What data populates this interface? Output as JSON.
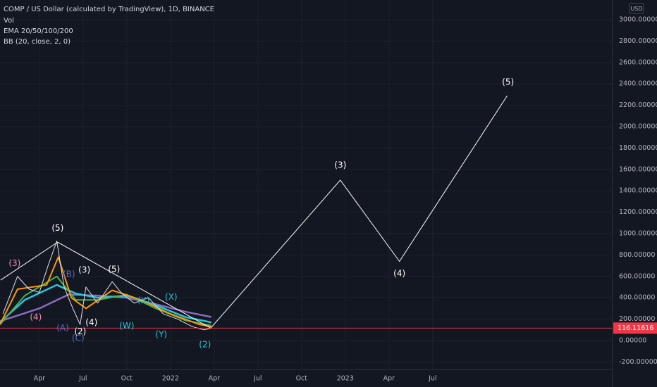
{
  "chart_data": {
    "type": "line",
    "header": [
      "COMP / US Dollar (calculated by TradingView), 1D, BINANCE",
      "Vol",
      "EMA 20/50/100/200",
      "BB (20, close, 2, 0)"
    ],
    "y_axis_label": "USD",
    "ylim": [
      -270,
      3000
    ],
    "xlim": [
      0.3,
      42.3
    ],
    "grid": true,
    "yticks": [
      {
        "value": 3000,
        "label": "3000.00000"
      },
      {
        "value": 2800,
        "label": "2800.00000"
      },
      {
        "value": 2600,
        "label": "2600.00000"
      },
      {
        "value": 2400,
        "label": "2400.00000"
      },
      {
        "value": 2200,
        "label": "2200.00000"
      },
      {
        "value": 2000,
        "label": "2000.00000"
      },
      {
        "value": 1800,
        "label": "1800.00000"
      },
      {
        "value": 1600,
        "label": "1600.00000"
      },
      {
        "value": 1400,
        "label": "1400.00000"
      },
      {
        "value": 1200,
        "label": "1200.00000"
      },
      {
        "value": 1000,
        "label": "1000.00000"
      },
      {
        "value": 800,
        "label": "800.00000"
      },
      {
        "value": 600,
        "label": "600.00000"
      },
      {
        "value": 400,
        "label": "400.00000"
      },
      {
        "value": 200,
        "label": "200.00000"
      },
      {
        "value": 0,
        "label": "0.00000"
      },
      {
        "value": -200,
        "label": "-200.00000"
      }
    ],
    "xticks": [
      {
        "value": 3,
        "label": "Apr"
      },
      {
        "value": 6,
        "label": "Jul"
      },
      {
        "value": 9,
        "label": "Oct"
      },
      {
        "value": 12,
        "label": "2022"
      },
      {
        "value": 15,
        "label": "Apr"
      },
      {
        "value": 18,
        "label": "Jul"
      },
      {
        "value": 21,
        "label": "Oct"
      },
      {
        "value": 24,
        "label": "2023"
      },
      {
        "value": 27,
        "label": "Apr"
      },
      {
        "value": 30,
        "label": "Jul"
      }
    ],
    "last_price": 116.11616,
    "last_price_color": "#f23645",
    "series": [
      {
        "color": "#8a6bbf",
        "width": 2.5,
        "x": [
          0.3,
          3,
          5,
          7,
          9,
          11,
          13,
          14.8
        ],
        "values": [
          180,
          300,
          430,
          420,
          400,
          340,
          270,
          220
        ]
      },
      {
        "color": "#26c6da",
        "width": 2.5,
        "x": [
          0.3,
          2,
          4.2,
          5.5,
          7,
          9,
          11,
          13,
          14.8
        ],
        "values": [
          170,
          380,
          520,
          440,
          400,
          420,
          330,
          220,
          170
        ]
      },
      {
        "color": "#4caf50",
        "width": 2,
        "x": [
          0.3,
          2,
          4.2,
          5.5,
          7,
          9,
          11,
          13,
          14.8
        ],
        "values": [
          150,
          420,
          600,
          380,
          380,
          430,
          300,
          190,
          140
        ]
      },
      {
        "color": "#ff9800",
        "width": 2,
        "x": [
          0.3,
          1.5,
          3.5,
          4.3,
          5.2,
          6.2,
          8,
          10,
          12,
          14,
          14.8
        ],
        "values": [
          150,
          480,
          520,
          780,
          400,
          300,
          470,
          380,
          250,
          150,
          130
        ]
      },
      {
        "color": "#e0e3eb",
        "width": 1,
        "x": [
          0.5,
          1.5,
          2.3,
          3.0,
          3.6,
          4.2,
          4.7,
          5.3,
          5.8,
          6.2,
          7.0,
          8.0,
          8.6,
          9.5,
          10.5,
          11.5,
          12.5,
          13.5,
          14.3,
          14.8
        ],
        "values": [
          250,
          600,
          480,
          450,
          700,
          930,
          500,
          300,
          150,
          500,
          350,
          550,
          450,
          350,
          400,
          250,
          200,
          130,
          100,
          116
        ]
      },
      {
        "color": "#ffffff",
        "width": 1,
        "x": [
          0.34,
          4.26,
          14.76
        ],
        "values": [
          565,
          920,
          116
        ]
      },
      {
        "color": "#ffffff",
        "width": 1,
        "x": [
          14.76,
          23.66,
          27.72,
          35.12
        ],
        "values": [
          116,
          1500,
          740,
          2290
        ]
      }
    ],
    "annotations": [
      {
        "text": "(3)",
        "x": 1.31,
        "y": 719,
        "color": "#f48fb1"
      },
      {
        "text": "(4)",
        "x": 2.76,
        "y": 216,
        "color": "#f48fb1"
      },
      {
        "text": "(5)",
        "x": 4.26,
        "y": 1048,
        "color": "#ffffff"
      },
      {
        "text": "(B)",
        "x": 5.03,
        "y": 618,
        "color": "#5c6bc0"
      },
      {
        "text": "(A)",
        "x": 4.6,
        "y": 115,
        "color": "#5c6bc0"
      },
      {
        "text": "(C)",
        "x": 5.66,
        "y": 21,
        "color": "#5c6bc0"
      },
      {
        "text": "(2)",
        "x": 5.81,
        "y": 82,
        "color": "#ffffff"
      },
      {
        "text": "(3)",
        "x": 6.09,
        "y": 658,
        "color": "#ffffff"
      },
      {
        "text": "(4)",
        "x": 6.58,
        "y": 169,
        "color": "#ffffff"
      },
      {
        "text": "(5)",
        "x": 8.13,
        "y": 665,
        "color": "#ffffff"
      },
      {
        "text": "(W)",
        "x": 9.0,
        "y": 135,
        "color": "#26c6da"
      },
      {
        "text": "(X)",
        "x": 10.16,
        "y": 370,
        "color": "#26c6da"
      },
      {
        "text": "(Y)",
        "x": 11.37,
        "y": 55,
        "color": "#26c6da"
      },
      {
        "text": "(X)",
        "x": 12.05,
        "y": 404,
        "color": "#26c6da"
      },
      {
        "text": "(2)",
        "x": 14.37,
        "y": -39,
        "color": "#26c6da"
      },
      {
        "text": "(3)",
        "x": 23.66,
        "y": 1638,
        "color": "#ffffff"
      },
      {
        "text": "(4)",
        "x": 27.72,
        "y": 625,
        "color": "#ffffff"
      },
      {
        "text": "(5)",
        "x": 35.17,
        "y": 2416,
        "color": "#ffffff"
      }
    ]
  }
}
